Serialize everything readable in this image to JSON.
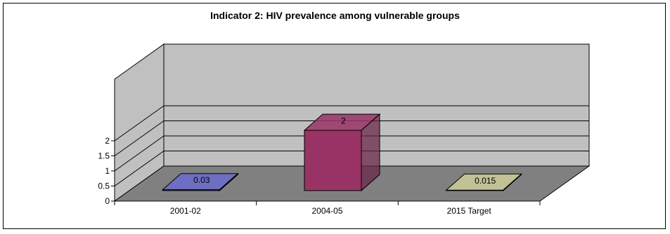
{
  "chart_data": {
    "type": "bar",
    "title": "Indicator 2: HIV prevalence among vulnerable groups",
    "categories": [
      "2001-02",
      "2004-05",
      "2015 Target"
    ],
    "series": [
      {
        "values": [
          0.03,
          2,
          0.015
        ]
      }
    ],
    "data_labels": [
      "0.03",
      "2",
      "0.015"
    ],
    "y_ticks": [
      "0",
      "0.5",
      "1",
      "1.5",
      "2"
    ],
    "ylim": [
      0,
      2
    ],
    "grid": true,
    "legend": "none",
    "three_d": true,
    "colors": {
      "bars": [
        "#6b6bcf",
        "#993366",
        "#cccc99"
      ],
      "wall": "#c0c0c0",
      "floor": "#808080"
    }
  }
}
